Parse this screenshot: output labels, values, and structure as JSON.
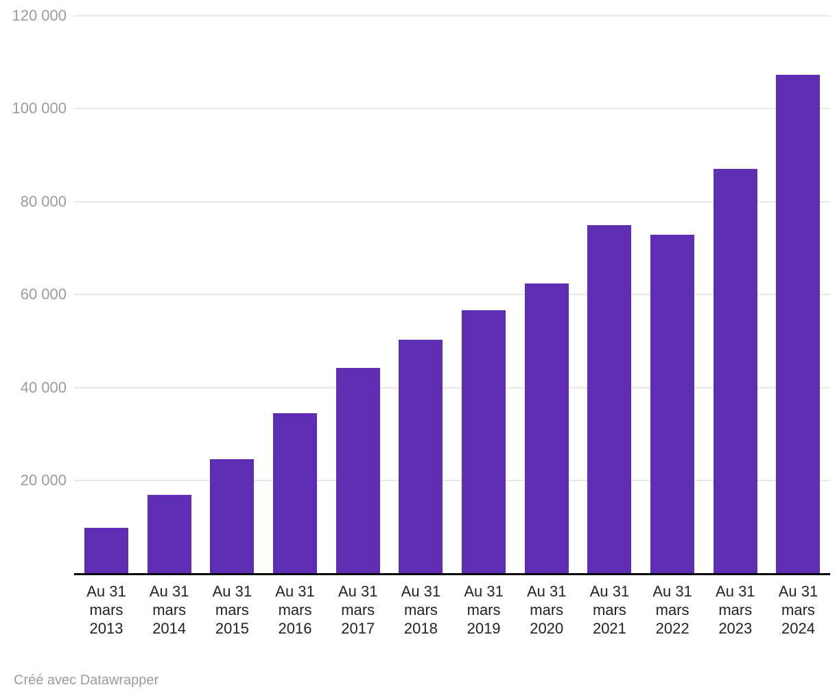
{
  "chart_data": {
    "type": "bar",
    "title": "",
    "xlabel": "",
    "ylabel": "",
    "categories": [
      "Au 31 mars 2013",
      "Au 31 mars 2014",
      "Au 31 mars 2015",
      "Au 31 mars 2016",
      "Au 31 mars 2017",
      "Au 31 mars 2018",
      "Au 31 mars 2019",
      "Au 31 mars 2020",
      "Au 31 mars 2021",
      "Au 31 mars 2022",
      "Au 31 mars 2023",
      "Au 31 mars 2024"
    ],
    "category_label_lines": [
      [
        "Au 31",
        "mars",
        "2013"
      ],
      [
        "Au 31",
        "mars",
        "2014"
      ],
      [
        "Au 31",
        "mars",
        "2015"
      ],
      [
        "Au 31",
        "mars",
        "2016"
      ],
      [
        "Au 31",
        "mars",
        "2017"
      ],
      [
        "Au 31",
        "mars",
        "2018"
      ],
      [
        "Au 31",
        "mars",
        "2019"
      ],
      [
        "Au 31",
        "mars",
        "2020"
      ],
      [
        "Au 31",
        "mars",
        "2021"
      ],
      [
        "Au 31",
        "mars",
        "2022"
      ],
      [
        "Au 31",
        "mars",
        "2023"
      ],
      [
        "Au 31",
        "mars",
        "2024"
      ]
    ],
    "values": [
      9900,
      17000,
      24600,
      34500,
      44200,
      50300,
      56700,
      62400,
      75000,
      72800,
      87100,
      107300
    ],
    "ylim": [
      0,
      120000
    ],
    "yticks": [
      {
        "value": 20000,
        "label": "20 000"
      },
      {
        "value": 40000,
        "label": "40 000"
      },
      {
        "value": 60000,
        "label": "60 000"
      },
      {
        "value": 80000,
        "label": "80 000"
      },
      {
        "value": 100000,
        "label": "100 000"
      },
      {
        "value": 120000,
        "label": "120 000"
      }
    ],
    "grid": true,
    "legend": "none"
  },
  "footer": {
    "credit": "Créé avec Datawrapper"
  },
  "colors": {
    "bar": "#5e2db3",
    "grid": "#e8e8e8",
    "axis": "#000000",
    "ytick_text": "#9b9b9b",
    "xtick_text": "#222222",
    "credit_text": "#9b9b9b",
    "background": "#ffffff"
  }
}
